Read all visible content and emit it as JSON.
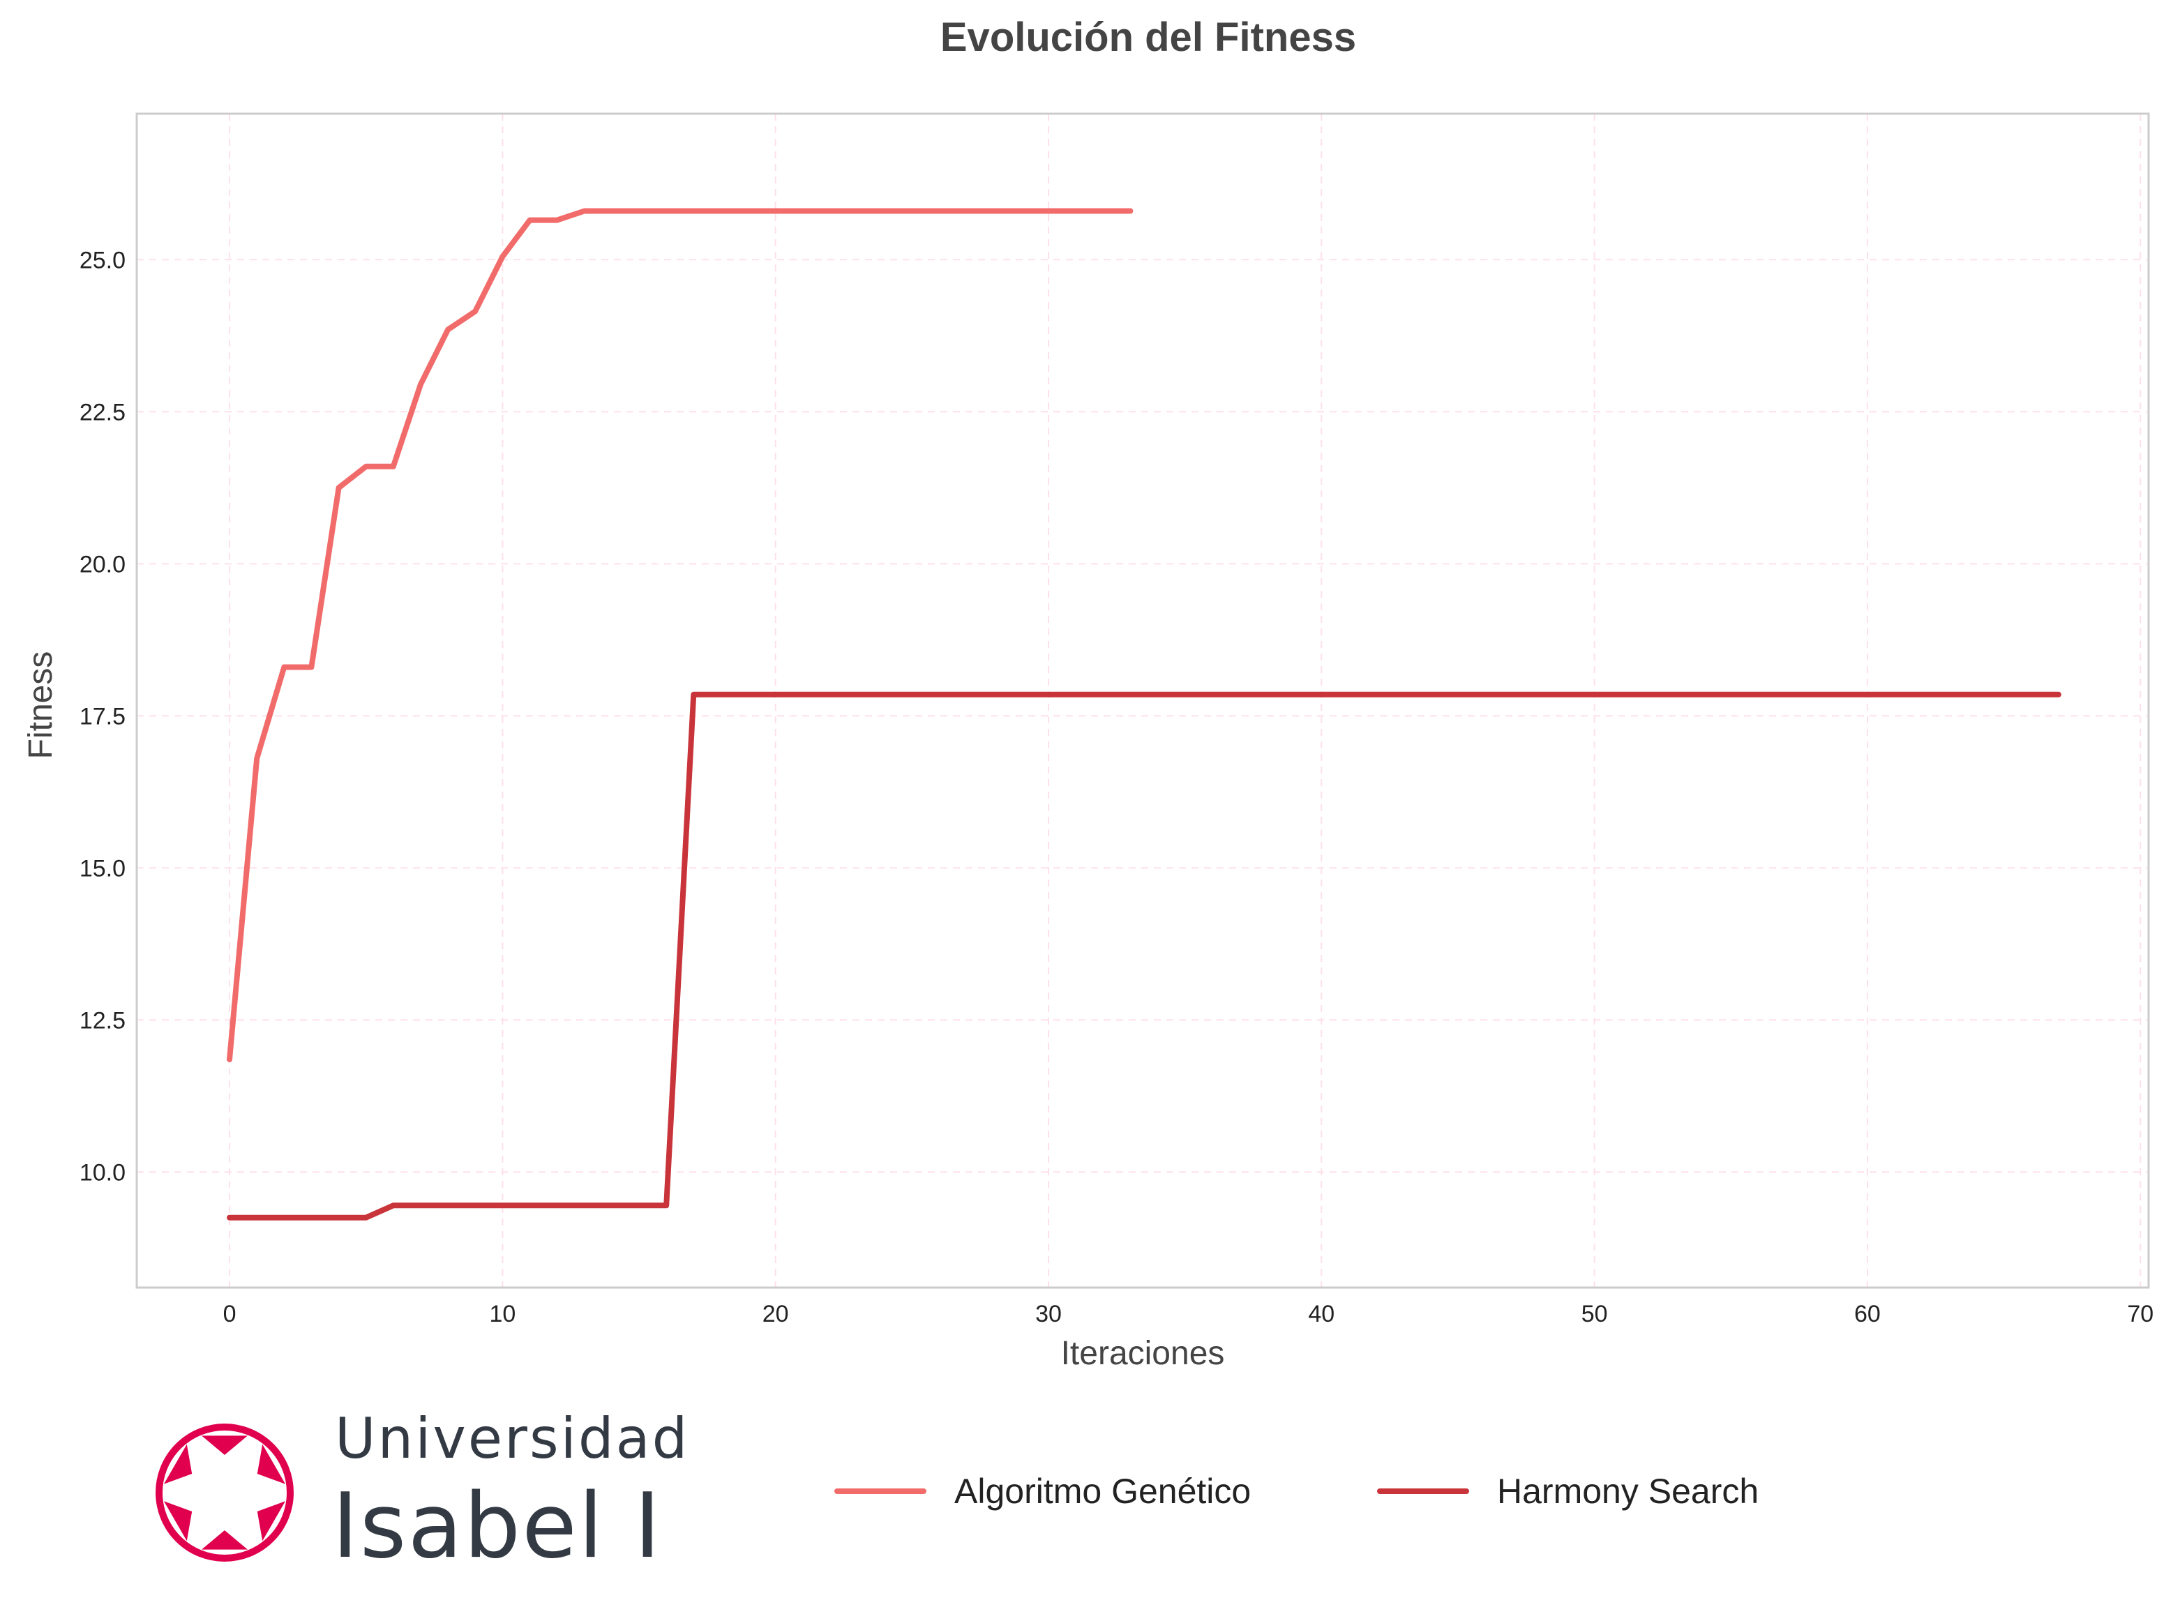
{
  "chart_data": {
    "type": "line",
    "title": "Evolución del Fitness",
    "xlabel": "Iteraciones",
    "ylabel": "Fitness",
    "xlim": [
      -3.4,
      70.3
    ],
    "ylim": [
      8.1,
      27.4
    ],
    "xticks": [
      0,
      10,
      20,
      30,
      40,
      50,
      60,
      70
    ],
    "yticks": [
      10.0,
      12.5,
      15.0,
      17.5,
      20.0,
      22.5,
      25.0
    ],
    "xtick_labels": [
      "0",
      "10",
      "20",
      "30",
      "40",
      "50",
      "60",
      "70"
    ],
    "ytick_labels": [
      "10.0",
      "12.5",
      "15.0",
      "17.5",
      "20.0",
      "22.5",
      "25.0"
    ],
    "grid": true,
    "legend_position": "bottom-center",
    "series": [
      {
        "name": "Algoritmo Genético",
        "color": "#f26b6b",
        "x": [
          0,
          1,
          2,
          3,
          4,
          5,
          6,
          7,
          8,
          9,
          10,
          11,
          12,
          13,
          14,
          15,
          16,
          17,
          18,
          19,
          20,
          21,
          22,
          23,
          24,
          25,
          26,
          27,
          28,
          29,
          30,
          31,
          32,
          33
        ],
        "y": [
          11.85,
          16.8,
          18.3,
          18.3,
          21.25,
          21.6,
          21.6,
          22.95,
          23.85,
          24.15,
          25.05,
          25.65,
          25.65,
          25.8,
          25.8,
          25.8,
          25.8,
          25.8,
          25.8,
          25.8,
          25.8,
          25.8,
          25.8,
          25.8,
          25.8,
          25.8,
          25.8,
          25.8,
          25.8,
          25.8,
          25.8,
          25.8,
          25.8,
          25.8
        ]
      },
      {
        "name": "Harmony Search",
        "color": "#c8343a",
        "x": [
          0,
          1,
          2,
          3,
          4,
          5,
          6,
          7,
          8,
          9,
          10,
          11,
          12,
          13,
          14,
          15,
          16,
          17,
          18,
          19,
          20,
          21,
          22,
          23,
          24,
          25,
          26,
          27,
          28,
          29,
          30,
          31,
          32,
          33,
          34,
          35,
          36,
          37,
          38,
          39,
          40,
          41,
          42,
          43,
          44,
          45,
          46,
          47,
          48,
          49,
          50,
          51,
          52,
          53,
          54,
          55,
          56,
          57,
          58,
          59,
          60,
          61,
          62,
          63,
          64,
          65,
          66,
          67
        ],
        "y": [
          9.25,
          9.25,
          9.25,
          9.25,
          9.25,
          9.25,
          9.45,
          9.45,
          9.45,
          9.45,
          9.45,
          9.45,
          9.45,
          9.45,
          9.45,
          9.45,
          9.45,
          17.85,
          17.85,
          17.85,
          17.85,
          17.85,
          17.85,
          17.85,
          17.85,
          17.85,
          17.85,
          17.85,
          17.85,
          17.85,
          17.85,
          17.85,
          17.85,
          17.85,
          17.85,
          17.85,
          17.85,
          17.85,
          17.85,
          17.85,
          17.85,
          17.85,
          17.85,
          17.85,
          17.85,
          17.85,
          17.85,
          17.85,
          17.85,
          17.85,
          17.85,
          17.85,
          17.85,
          17.85,
          17.85,
          17.85,
          17.85,
          17.85,
          17.85,
          17.85,
          17.85,
          17.85,
          17.85,
          17.85,
          17.85,
          17.85,
          17.85,
          17.85
        ]
      }
    ]
  },
  "logo": {
    "line1": "Universidad",
    "line2": "Isabel I",
    "color": "#e0004d"
  }
}
